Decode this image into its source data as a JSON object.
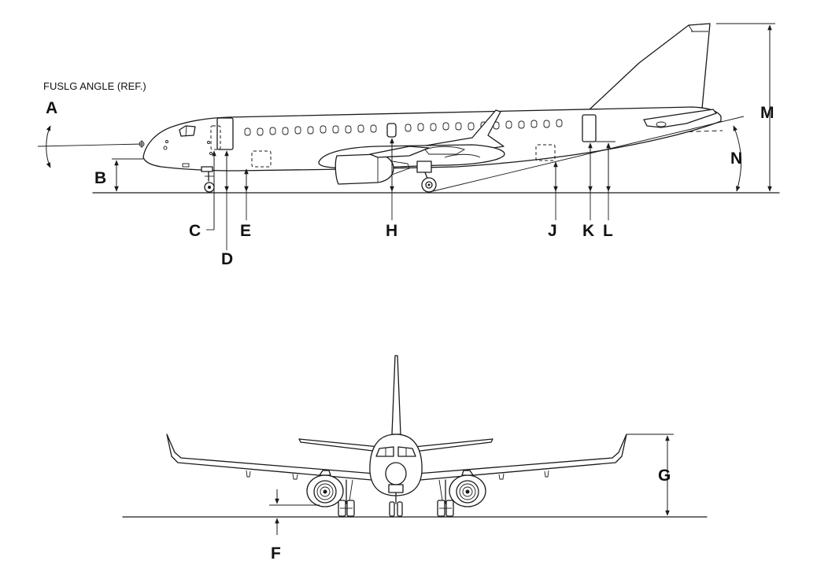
{
  "diagram": {
    "reference_note": "FUSLG ANGLE (REF.)",
    "labels": {
      "a": "A",
      "b": "B",
      "c": "C",
      "d": "D",
      "e": "E",
      "f": "F",
      "g": "G",
      "h": "H",
      "j": "J",
      "k": "K",
      "l": "L",
      "m": "M",
      "n": "N"
    }
  }
}
